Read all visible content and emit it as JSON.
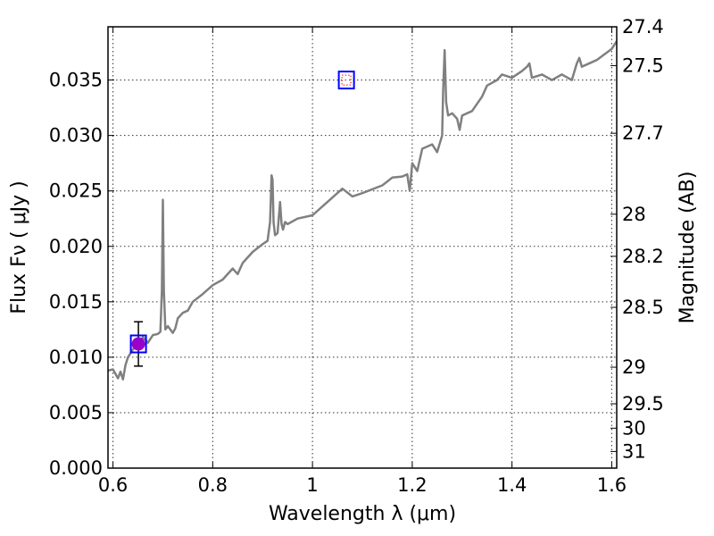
{
  "chart_data": {
    "type": "line",
    "title": "",
    "xlabel": "Wavelength  λ (μm)",
    "ylabel": "Flux  Fν  ( μJy )",
    "y2label": "Magnitude (AB)",
    "xlim": [
      0.59,
      1.61
    ],
    "ylim": [
      0.0,
      0.0398
    ],
    "grid": true,
    "x_ticks": [
      0.6,
      0.8,
      1.0,
      1.2,
      1.4,
      1.6
    ],
    "x_tick_labels": [
      "0.6",
      "0.8",
      "1",
      "1.2",
      "1.4",
      "1.6"
    ],
    "y_ticks": [
      0.0,
      0.005,
      0.01,
      0.015,
      0.02,
      0.025,
      0.03,
      0.035
    ],
    "y_tick_labels": [
      "0.000",
      "0.005",
      "0.010",
      "0.015",
      "0.020",
      "0.025",
      "0.030",
      "0.035"
    ],
    "y2_ticks": [
      {
        "label": "27.4",
        "flux": 0.0398
      },
      {
        "label": "27.5",
        "flux": 0.0363
      },
      {
        "label": "27.7",
        "flux": 0.0302
      },
      {
        "label": "28",
        "flux": 0.0229
      },
      {
        "label": "28.2",
        "flux": 0.0191
      },
      {
        "label": "28.5",
        "flux": 0.0145
      },
      {
        "label": "29",
        "flux": 0.0091
      },
      {
        "label": "29.5",
        "flux": 0.0058
      },
      {
        "label": "30",
        "flux": 0.0036
      },
      {
        "label": "31",
        "flux": 0.0015
      }
    ],
    "series": [
      {
        "color": "#808080",
        "x": [
          0.59,
          0.6,
          0.605,
          0.61,
          0.615,
          0.62,
          0.625,
          0.63,
          0.64,
          0.65,
          0.66,
          0.67,
          0.68,
          0.69,
          0.695,
          0.698,
          0.7,
          0.702,
          0.705,
          0.71,
          0.72,
          0.725,
          0.73,
          0.74,
          0.75,
          0.76,
          0.78,
          0.8,
          0.82,
          0.84,
          0.85,
          0.86,
          0.88,
          0.9,
          0.91,
          0.915,
          0.918,
          0.92,
          0.922,
          0.925,
          0.93,
          0.935,
          0.938,
          0.941,
          0.945,
          0.95,
          0.97,
          1.0,
          1.03,
          1.06,
          1.08,
          1.1,
          1.14,
          1.16,
          1.18,
          1.19,
          1.195,
          1.2,
          1.21,
          1.22,
          1.24,
          1.25,
          1.26,
          1.262,
          1.265,
          1.268,
          1.272,
          1.28,
          1.29,
          1.295,
          1.3,
          1.32,
          1.34,
          1.35,
          1.37,
          1.38,
          1.4,
          1.42,
          1.43,
          1.435,
          1.44,
          1.46,
          1.48,
          1.5,
          1.52,
          1.53,
          1.535,
          1.54,
          1.57,
          1.6,
          1.61
        ],
        "y": [
          0.0088,
          0.0089,
          0.0085,
          0.0081,
          0.0087,
          0.008,
          0.0093,
          0.01,
          0.0107,
          0.0112,
          0.0118,
          0.0113,
          0.012,
          0.0121,
          0.0123,
          0.016,
          0.0242,
          0.016,
          0.0125,
          0.0128,
          0.0122,
          0.0126,
          0.0135,
          0.014,
          0.0142,
          0.015,
          0.0157,
          0.0165,
          0.017,
          0.018,
          0.0175,
          0.0185,
          0.0195,
          0.0202,
          0.0205,
          0.0222,
          0.0264,
          0.026,
          0.0222,
          0.021,
          0.0212,
          0.024,
          0.022,
          0.0215,
          0.0222,
          0.022,
          0.0225,
          0.0228,
          0.024,
          0.0252,
          0.0245,
          0.0248,
          0.0255,
          0.0262,
          0.0263,
          0.0265,
          0.025,
          0.0275,
          0.0268,
          0.0288,
          0.0292,
          0.0285,
          0.03,
          0.034,
          0.0377,
          0.033,
          0.0318,
          0.032,
          0.0315,
          0.0305,
          0.0318,
          0.0322,
          0.0335,
          0.0345,
          0.035,
          0.0355,
          0.0352,
          0.0358,
          0.0362,
          0.0365,
          0.0352,
          0.0355,
          0.035,
          0.0355,
          0.035,
          0.0365,
          0.037,
          0.0362,
          0.0368,
          0.0378,
          0.0385
        ]
      }
    ],
    "markers": [
      {
        "shape": "circle",
        "x": 0.651,
        "y": 0.0112,
        "color": "#9900cc",
        "error": 0.002
      },
      {
        "shape": "square",
        "x": 0.651,
        "y": 0.0112,
        "color": "#0000ff"
      },
      {
        "shape": "square-dotted",
        "x": 1.068,
        "y": 0.035,
        "color": "#0000ff",
        "inner_color": "#ff0000"
      }
    ]
  }
}
